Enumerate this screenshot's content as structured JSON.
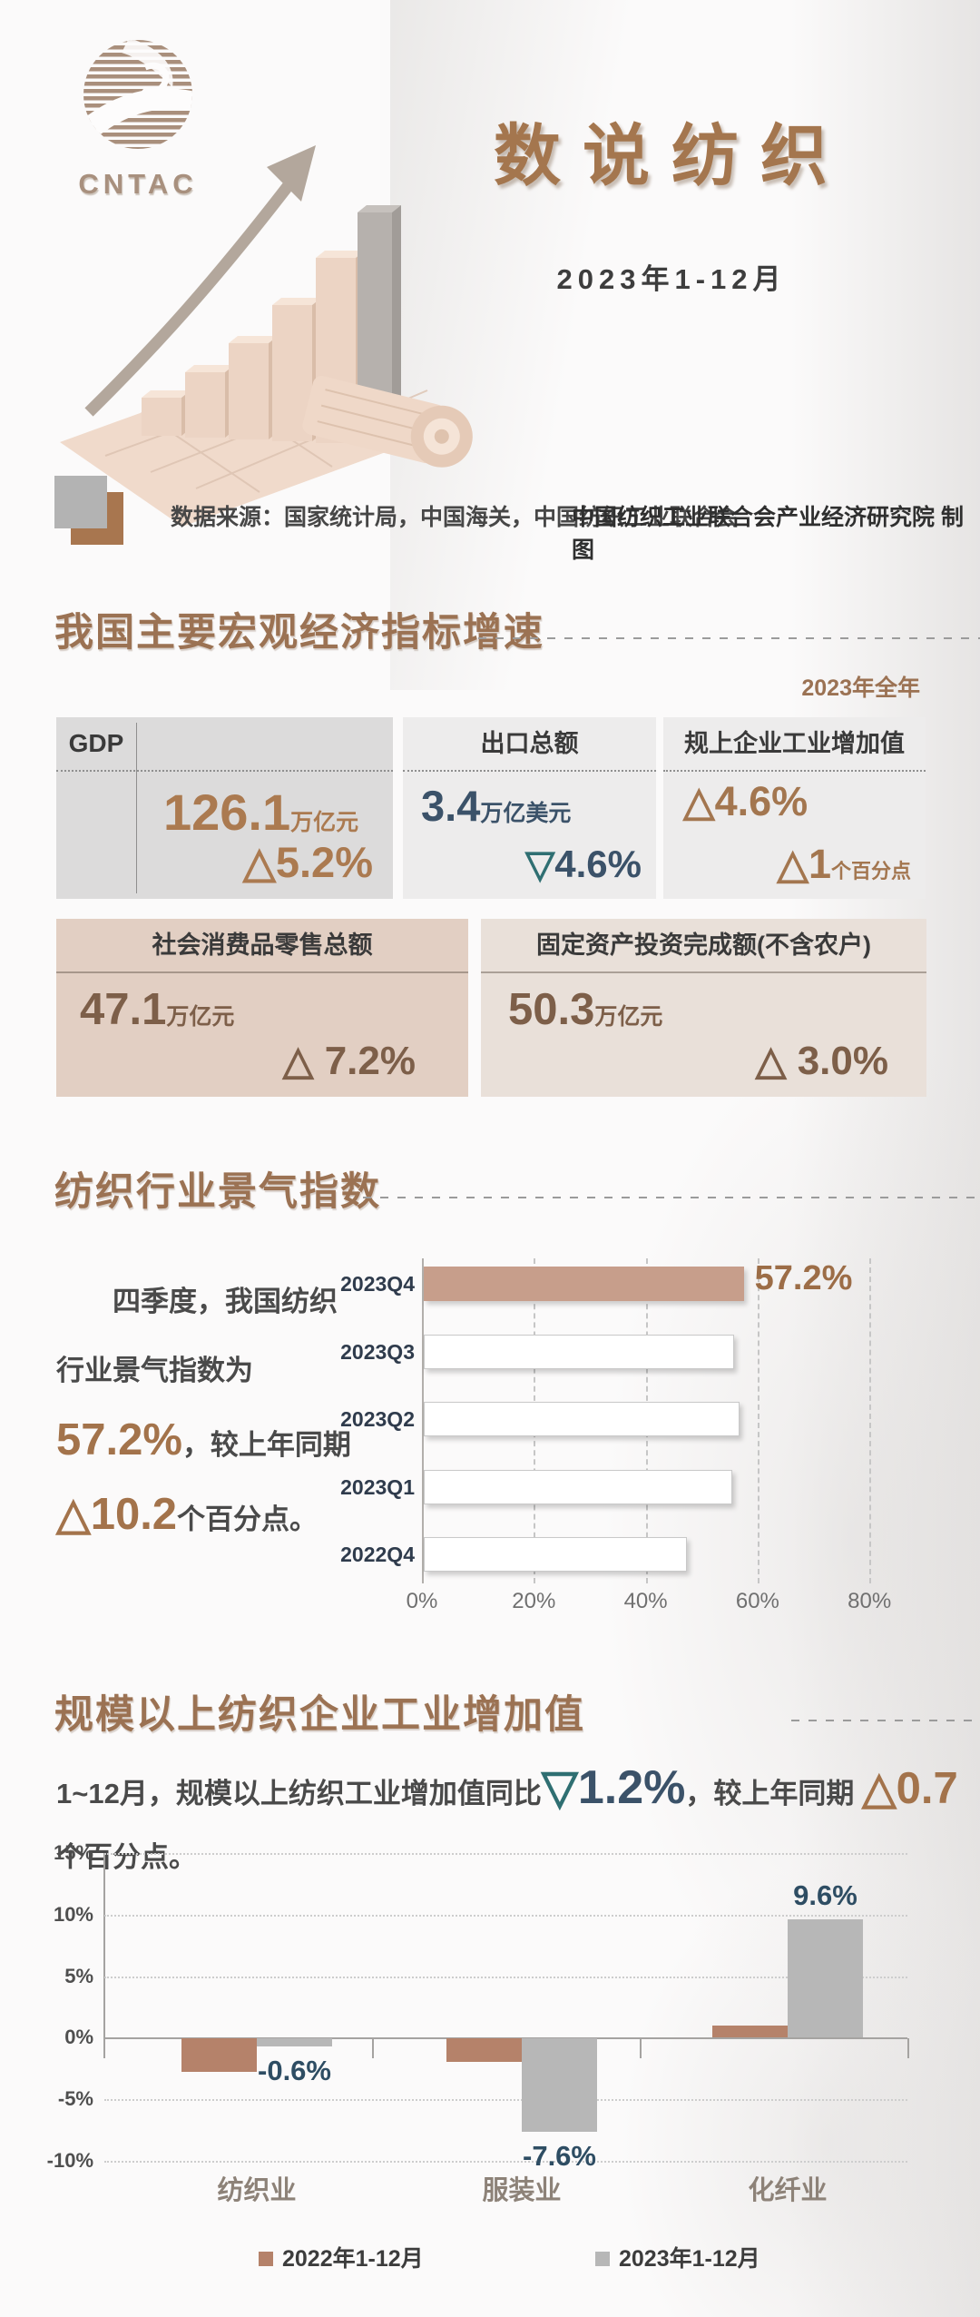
{
  "logo": {
    "text": "CNTAC"
  },
  "header": {
    "title": "数说纺织",
    "subtitle": "2023年1-12月",
    "source": "数据来源：国家统计局，中国海关，中国纺织工业联合会",
    "credit": "中国纺织工业联合会产业经济研究院 制图"
  },
  "section1": {
    "title": "我国主要宏观经济指标增速",
    "period": "2023年全年",
    "cards": {
      "gdp": {
        "label": "GDP",
        "value": "126.1",
        "unit": "万亿元",
        "delta_icon": "△",
        "delta_value": "5.2%"
      },
      "export": {
        "label": "出口总额",
        "value": "3.4",
        "unit": "万亿美元",
        "delta_icon": "▽",
        "delta_value": "4.6%"
      },
      "industry": {
        "label": "规上企业工业增加值",
        "d1_icon": "△",
        "d1_value": "4.6%",
        "d2_icon": "△",
        "d2_value": "1",
        "d2_unit": "个百分点"
      },
      "retail": {
        "label": "社会消费品零售总额",
        "value": "47.1",
        "unit": "万亿元",
        "delta_icon": "△",
        "delta_value": " 7.2%"
      },
      "investment": {
        "label": "固定资产投资完成额(不含农户)",
        "value": "50.3",
        "unit": "万亿元",
        "delta_icon": "△",
        "delta_value": " 3.0%"
      }
    }
  },
  "section2": {
    "title": "纺织行业景气指数",
    "para": {
      "p1": "四季度，我国纺织行业景气指数为",
      "big1": "57.2%",
      "p2": "，较上年同期 ",
      "icon2": "△",
      "big2": "10.2",
      "p3": "个百分点。"
    }
  },
  "section3": {
    "title": "规模以上纺织企业工业增加值",
    "para": {
      "p1": "1~12月，规模以上纺织工业增加值同比",
      "icon1": "▽",
      "big1": "1.2%",
      "p2": "，较上年同期 ",
      "icon2": "△",
      "big2": "0.7",
      "p3": "个百分点。"
    }
  },
  "chart_data": [
    {
      "type": "bar",
      "orientation": "horizontal",
      "title": "纺织行业景气指数",
      "categories": [
        "2023Q4",
        "2023Q3",
        "2023Q2",
        "2023Q1",
        "2022Q4"
      ],
      "values": [
        57.2,
        55.4,
        56.4,
        55.2,
        47.0
      ],
      "highlight_index": 0,
      "highlight_label": "57.2%",
      "highlight_color": "#c79e8b",
      "default_bar_color": "#ffffff",
      "x_ticks": [
        "0%",
        "20%",
        "40%",
        "60%",
        "80%"
      ],
      "xlim": [
        0,
        80
      ],
      "grid": "dashed-vertical"
    },
    {
      "type": "bar",
      "orientation": "vertical",
      "title": "规模以上纺织企业工业增加值",
      "categories": [
        "纺织业",
        "服装业",
        "化纤业"
      ],
      "series": [
        {
          "name": "2022年1-12月",
          "color": "#b5826a",
          "values": [
            -2.7,
            -1.9,
            1.0
          ]
        },
        {
          "name": "2023年1-12月",
          "color": "#b7b7b7",
          "values": [
            -0.6,
            -7.6,
            9.6
          ],
          "labels": [
            "-0.6%",
            "-7.6%",
            "9.6%"
          ]
        }
      ],
      "y_ticks": [
        "15%",
        "10%",
        "5%",
        "0%",
        "-5%",
        "-10%"
      ],
      "ylim": [
        -10,
        15
      ],
      "grid": "dotted-horizontal",
      "legend_position": "bottom"
    }
  ]
}
